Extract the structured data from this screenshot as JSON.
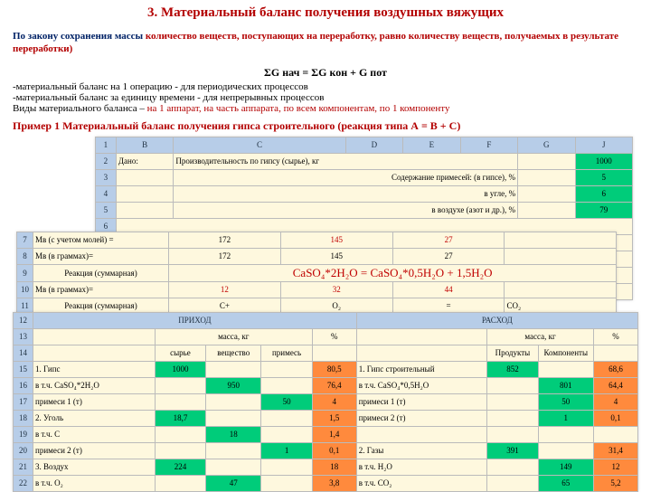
{
  "title": "3. Материальный баланс получения воздушных вяжущих",
  "intro_p1a": "По закону сохранения массы ",
  "intro_p1b": "количество веществ, поступающих на переработку, равно количеству веществ, получаемых в результате переработки)",
  "formula": "ΣG нач   = ΣG кон + G пот",
  "noteA": "-материальный баланс на 1 операцию - для периодических процессов",
  "noteB": "-материальный баланс за единицу времени - для непрерывных процессов",
  "vids_a": "Виды  материального баланса – ",
  "vids_b": "на 1 аппарат, на часть аппарата, по всем компонентам, по 1 компоненту",
  "example": "Пример 1    Материальный баланс получения гипса строительного    (реакция  типа А = В + С)",
  "t1": {
    "colhead": [
      "B",
      "C",
      "D",
      "E",
      "F",
      "G",
      "J"
    ],
    "rows": [
      {
        "n": "2",
        "a": "Дано:",
        "b": "Производительность по гипсу (сырье), кг",
        "v": "1000"
      },
      {
        "n": "3",
        "b": "Содержание примесей: (в гипсе), %",
        "v": "5"
      },
      {
        "n": "4",
        "b": "в угле, %",
        "v": "6"
      },
      {
        "n": "5",
        "b": "в воздухе (азот и  др.), %",
        "v": "79"
      }
    ]
  },
  "t2": {
    "rows": [
      {
        "n": "7",
        "lbl": "Мв (с учетом молей) =",
        "c": "172",
        "d": "145",
        "e": "27",
        "d_red": true,
        "e_red": true
      },
      {
        "n": "8",
        "lbl": "Мв (в граммах)=",
        "c": "172",
        "d": "145",
        "e": "27"
      },
      {
        "n": "9",
        "lbl": "Реакция (суммарная)",
        "f": "CaSO₄*2H₂O    =    CaSO₄*0,5H₂O   + 1,5H₂O"
      },
      {
        "n": "10",
        "lbl": "Мв (в граммах)=",
        "c": "12",
        "d": "32",
        "e": "44",
        "red": true
      },
      {
        "n": "11",
        "lbl": "Реакция (суммарная)",
        "a": "C+",
        "b": "O₂",
        "c": "=",
        "d": "CO₂"
      }
    ]
  },
  "t3": {
    "header1": {
      "n": "12",
      "l": "ПРИХОД",
      "r": "РАСХОД"
    },
    "header2": {
      "n": "13",
      "a": "масса,   кг",
      "b": "%",
      "c": "масса, кг",
      "d": "%"
    },
    "header3": {
      "n": "14",
      "a": "сырье",
      "b": "вещество",
      "c": "примесь",
      "d": "Продукты",
      "e": "Компоненты"
    },
    "rows": [
      {
        "n": "15",
        "name": "1. Гипс",
        "m": "1000",
        "v": "",
        "p": "",
        "pct": "80,5",
        "rname": "1. Гипс строительный",
        "rm": "852",
        "rv": "",
        "rpct": "68,6"
      },
      {
        "n": "16",
        "name": "в т.ч. CaSO₄*2H₂O",
        "m": "",
        "v": "950",
        "p": "",
        "pct": "76,4",
        "rname": "в т.ч. CaSO₄*0,5H₂O",
        "rm": "",
        "rv": "801",
        "rpct": "64,4"
      },
      {
        "n": "17",
        "name": "примеси 1 (т)",
        "m": "",
        "v": "",
        "p": "50",
        "pct": "4",
        "rname": "примеси 1 (т)",
        "rm": "",
        "rv": "50",
        "rpct": "4"
      },
      {
        "n": "18",
        "name": "2.  Уголь",
        "m": "18,7",
        "v": "",
        "p": "",
        "pct": "1,5",
        "rname": "примеси  2 (т)",
        "rm": "",
        "rv": "1",
        "rpct": "0,1"
      },
      {
        "n": "19",
        "name": "в т.ч. С",
        "m": "",
        "v": "18",
        "p": "",
        "pct": "1,4",
        "rname": "",
        "rm": "",
        "rv": "",
        "rpct": ""
      },
      {
        "n": "20",
        "name": "примеси 2 (т)",
        "m": "",
        "v": "",
        "p": "1",
        "pct": "0,1",
        "rname": "2. Газы",
        "rm": "391",
        "rv": "",
        "rpct": "31,4"
      },
      {
        "n": "21",
        "name": "3.  Воздух",
        "m": "224",
        "v": "",
        "p": "",
        "pct": "18",
        "rname": "в т.ч. Н₂О",
        "rm": "",
        "rv": "149",
        "rpct": "12"
      },
      {
        "n": "22",
        "name": "в т.ч. О₂",
        "m": "",
        "v": "47",
        "p": "",
        "pct": "3,8",
        "rname": "в т.ч. СО₂",
        "rm": "",
        "rv": "65",
        "rpct": "5,2"
      }
    ]
  }
}
